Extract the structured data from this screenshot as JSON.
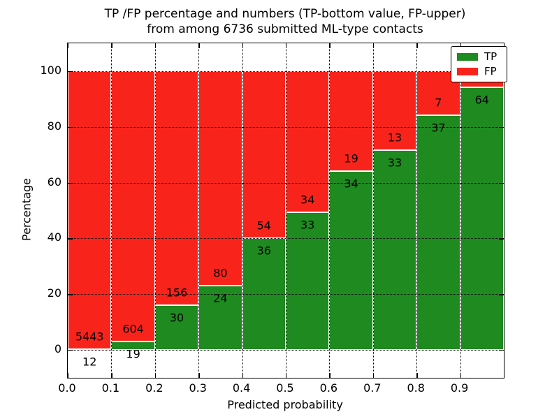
{
  "chart_data": {
    "type": "stacked_bar_percentage",
    "title_line1": "TP /FP percentage and numbers (TP-bottom value, FP-upper)",
    "title_line2": "from among 6736 submitted ML-type contacts",
    "xlabel": "Predicted probability",
    "ylabel": "Percentage",
    "total_contacts": 6736,
    "xlim": [
      0.0,
      1.0
    ],
    "ylim": [
      -10,
      110
    ],
    "grid_style": "dotted",
    "x_ticks": [
      {
        "pos": 0.0,
        "label": "0.0"
      },
      {
        "pos": 0.1,
        "label": "0.1"
      },
      {
        "pos": 0.2,
        "label": "0.2"
      },
      {
        "pos": 0.3,
        "label": "0.3"
      },
      {
        "pos": 0.4,
        "label": "0.4"
      },
      {
        "pos": 0.5,
        "label": "0.5"
      },
      {
        "pos": 0.6,
        "label": "0.6"
      },
      {
        "pos": 0.7,
        "label": "0.7"
      },
      {
        "pos": 0.8,
        "label": "0.8"
      },
      {
        "pos": 0.9,
        "label": "0.9"
      }
    ],
    "y_ticks": [
      {
        "pos": 0,
        "label": "0"
      },
      {
        "pos": 20,
        "label": "20"
      },
      {
        "pos": 40,
        "label": "40"
      },
      {
        "pos": 60,
        "label": "60"
      },
      {
        "pos": 80,
        "label": "80"
      },
      {
        "pos": 100,
        "label": "100"
      }
    ],
    "x_gridlines": [
      0.1,
      0.2,
      0.3,
      0.4,
      0.5,
      0.6,
      0.7,
      0.8,
      0.9
    ],
    "y_gridlines": [
      0,
      20,
      40,
      60,
      80,
      100
    ],
    "colors": {
      "tp": "#1e8a20",
      "fp": "#f8241c",
      "bar_edge": "#ffffff"
    },
    "legend": {
      "position": "upper-right",
      "items": [
        {
          "label": "TP",
          "color": "#1e8a20"
        },
        {
          "label": "FP",
          "color": "#f8241c"
        }
      ]
    },
    "bars": [
      {
        "x0": 0.0,
        "x1": 0.1,
        "tp": 12,
        "fp": 5443,
        "tp_pct": 0.22
      },
      {
        "x0": 0.1,
        "x1": 0.2,
        "tp": 19,
        "fp": 604,
        "tp_pct": 3.05
      },
      {
        "x0": 0.2,
        "x1": 0.3,
        "tp": 30,
        "fp": 156,
        "tp_pct": 16.13
      },
      {
        "x0": 0.3,
        "x1": 0.4,
        "tp": 24,
        "fp": 80,
        "tp_pct": 23.08
      },
      {
        "x0": 0.4,
        "x1": 0.5,
        "tp": 36,
        "fp": 54,
        "tp_pct": 40.0
      },
      {
        "x0": 0.5,
        "x1": 0.6,
        "tp": 33,
        "fp": 34,
        "tp_pct": 49.25
      },
      {
        "x0": 0.6,
        "x1": 0.7,
        "tp": 34,
        "fp": 19,
        "tp_pct": 64.15
      },
      {
        "x0": 0.7,
        "x1": 0.8,
        "tp": 33,
        "fp": 13,
        "tp_pct": 71.74
      },
      {
        "x0": 0.8,
        "x1": 0.9,
        "tp": 37,
        "fp": 7,
        "tp_pct": 84.09
      },
      {
        "x0": 0.9,
        "x1": 1.0,
        "tp": 64,
        "fp": 4,
        "tp_pct": 94.12,
        "fp_label_occluded_by_legend": true
      }
    ]
  }
}
